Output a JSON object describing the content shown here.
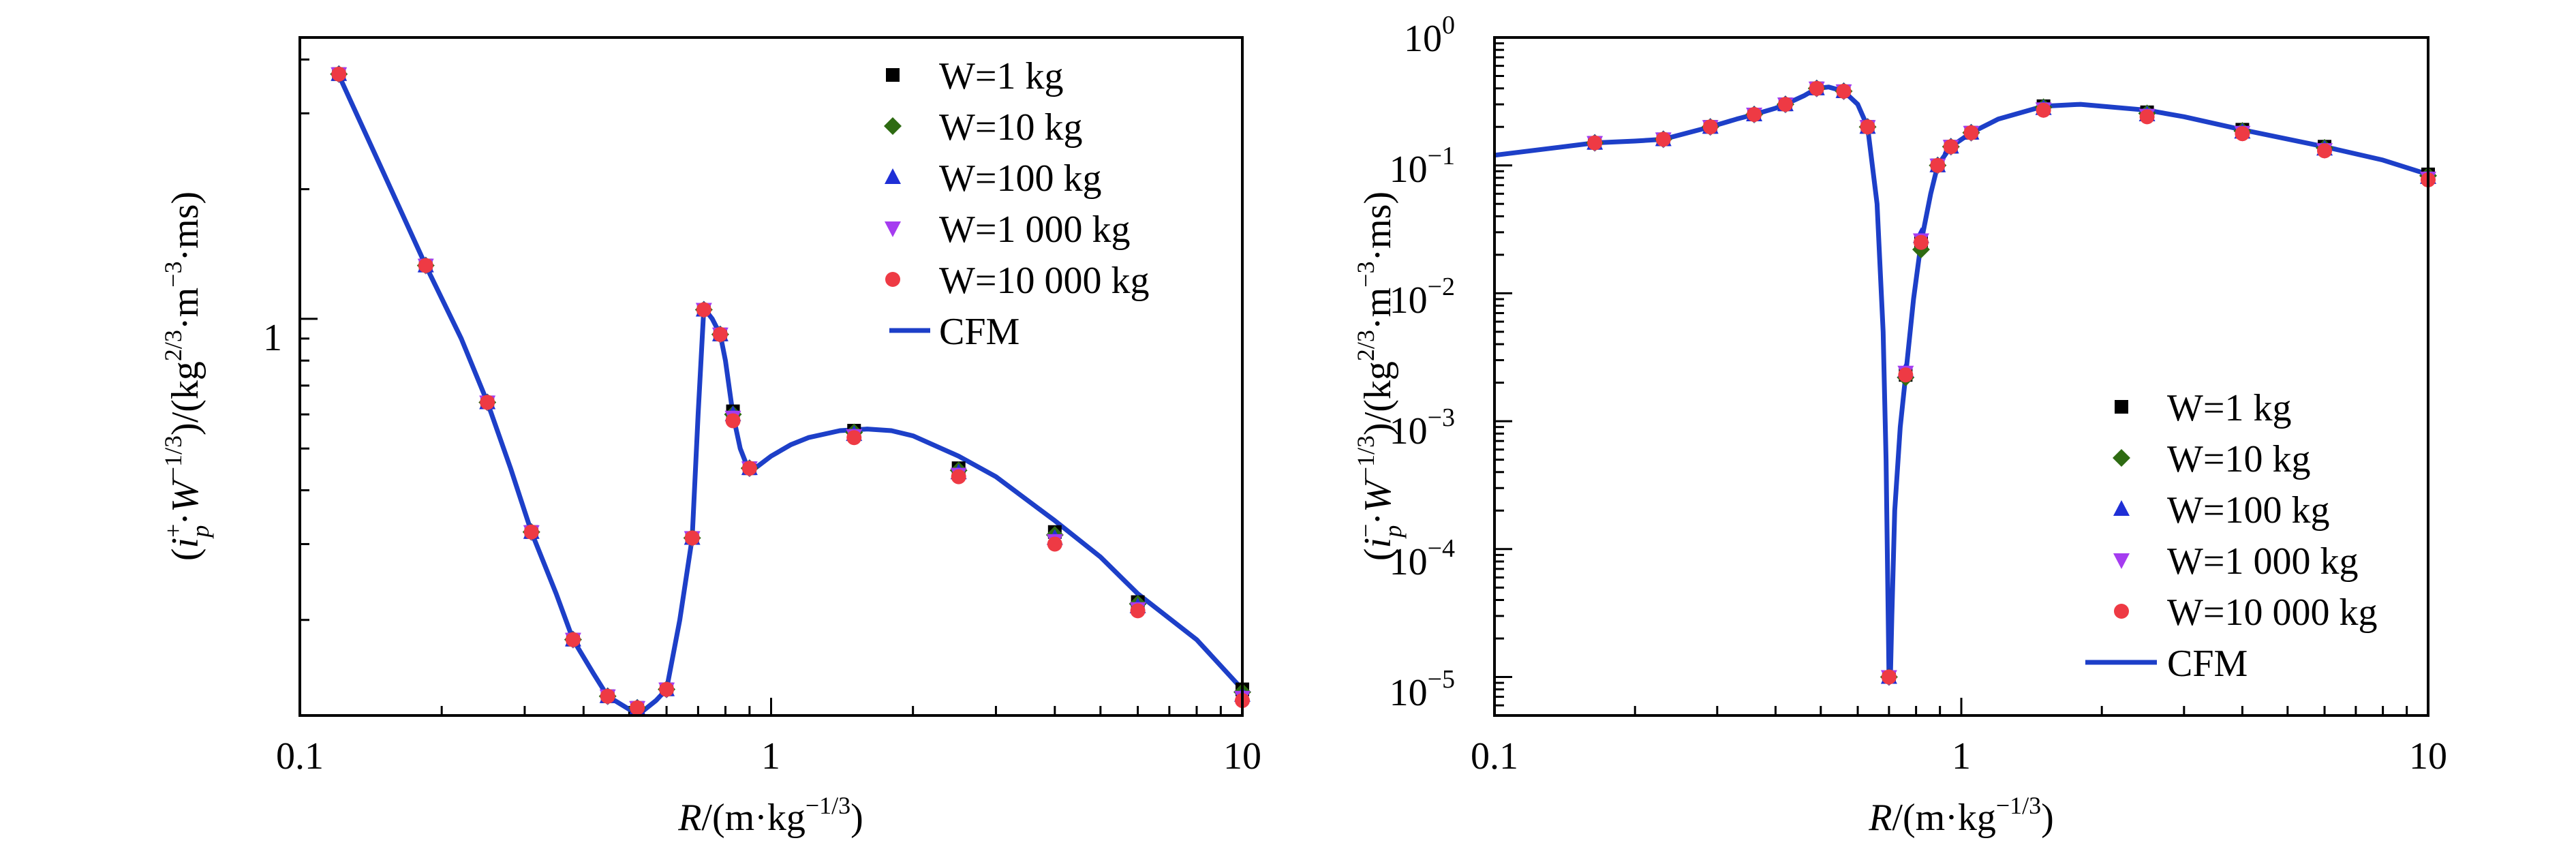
{
  "colors": {
    "w1": "#000000",
    "w10": "#2e6b12",
    "w100": "#1f2fd6",
    "w1000": "#a53cf0",
    "w10000": "#ee3a44",
    "cfm": "#1d3fc8"
  },
  "chart_data": [
    {
      "type": "scatter",
      "xscale": "log",
      "yscale": "log",
      "xlim": [
        0.1,
        10
      ],
      "ylim": [
        0.12,
        4.5
      ],
      "xticks": [
        "0.1",
        "1",
        "10"
      ],
      "yticks": [
        "1"
      ],
      "xlabel_main": "R",
      "xlabel_rest": "/(m·kg",
      "xlabel_exp": "−1/3",
      "xlabel_close": ")",
      "ylabel_parts": {
        "open": "(",
        "i": "i",
        "sup": "+",
        "sub": "p",
        "dot": "·",
        "w": "W",
        "wexp": "−1/3",
        "mid": ")/(kg",
        "kgexp": "2/3",
        "mid2": "·m",
        "mexp": "−3",
        "end": "·ms)"
      },
      "legend_position": "top-right",
      "series": [
        {
          "name": "W=1  kg",
          "marker": "square",
          "x": [
            0.121,
            0.185,
            0.25,
            0.31,
            0.38,
            0.45,
            0.52,
            0.6,
            0.68,
            0.72,
            0.78,
            0.83,
            0.9,
            1.5,
            2.5,
            4,
            6,
            10
          ],
          "y": [
            3.7,
            1.33,
            0.64,
            0.32,
            0.18,
            0.133,
            0.125,
            0.138,
            0.31,
            1.05,
            0.92,
            0.61,
            0.45,
            0.55,
            0.45,
            0.32,
            0.22,
            0.138
          ]
        },
        {
          "name": "W=10 kg",
          "marker": "diamond",
          "x": [
            0.121,
            0.185,
            0.25,
            0.31,
            0.38,
            0.45,
            0.52,
            0.6,
            0.68,
            0.72,
            0.78,
            0.83,
            0.9,
            1.5,
            2.5,
            4,
            6,
            10
          ],
          "y": [
            3.7,
            1.33,
            0.64,
            0.32,
            0.18,
            0.133,
            0.125,
            0.138,
            0.31,
            1.05,
            0.92,
            0.6,
            0.45,
            0.545,
            0.445,
            0.315,
            0.218,
            0.136
          ]
        },
        {
          "name": "W=100 kg",
          "marker": "triangle-up",
          "x": [
            0.121,
            0.185,
            0.25,
            0.31,
            0.38,
            0.45,
            0.52,
            0.6,
            0.68,
            0.72,
            0.78,
            0.83,
            0.9,
            1.5,
            2.5,
            4,
            6,
            10
          ],
          "y": [
            3.7,
            1.33,
            0.64,
            0.32,
            0.18,
            0.133,
            0.125,
            0.138,
            0.31,
            1.05,
            0.92,
            0.6,
            0.45,
            0.54,
            0.44,
            0.31,
            0.215,
            0.134
          ]
        },
        {
          "name": "W=1 000 kg",
          "marker": "triangle-down",
          "x": [
            0.121,
            0.185,
            0.25,
            0.31,
            0.38,
            0.45,
            0.52,
            0.6,
            0.68,
            0.72,
            0.78,
            0.83,
            0.9,
            1.5,
            2.5,
            4,
            6,
            10
          ],
          "y": [
            3.7,
            1.33,
            0.64,
            0.32,
            0.18,
            0.133,
            0.125,
            0.138,
            0.31,
            1.05,
            0.92,
            0.59,
            0.45,
            0.535,
            0.435,
            0.305,
            0.212,
            0.132
          ]
        },
        {
          "name": "W=10 000 kg",
          "marker": "circle",
          "x": [
            0.121,
            0.185,
            0.25,
            0.31,
            0.38,
            0.45,
            0.52,
            0.6,
            0.68,
            0.72,
            0.78,
            0.83,
            0.9,
            1.5,
            2.5,
            4,
            6,
            10
          ],
          "y": [
            3.7,
            1.33,
            0.64,
            0.32,
            0.18,
            0.133,
            0.125,
            0.138,
            0.31,
            1.05,
            0.92,
            0.58,
            0.45,
            0.53,
            0.43,
            0.3,
            0.21,
            0.13
          ]
        },
        {
          "name": "CFM",
          "line": true,
          "x": [
            0.12,
            0.15,
            0.185,
            0.22,
            0.25,
            0.28,
            0.31,
            0.35,
            0.38,
            0.42,
            0.45,
            0.5,
            0.53,
            0.57,
            0.6,
            0.64,
            0.68,
            0.7,
            0.72,
            0.75,
            0.78,
            0.8,
            0.83,
            0.86,
            0.9,
            0.95,
            1.0,
            1.1,
            1.2,
            1.4,
            1.6,
            1.8,
            2.0,
            2.5,
            3.0,
            4.0,
            5.0,
            6.0,
            8.0,
            10.0
          ],
          "y": [
            3.75,
            2.2,
            1.33,
            0.9,
            0.64,
            0.45,
            0.32,
            0.23,
            0.18,
            0.15,
            0.133,
            0.124,
            0.122,
            0.13,
            0.138,
            0.2,
            0.31,
            0.6,
            1.06,
            1.0,
            0.92,
            0.8,
            0.6,
            0.5,
            0.44,
            0.46,
            0.48,
            0.51,
            0.53,
            0.55,
            0.555,
            0.55,
            0.535,
            0.48,
            0.43,
            0.34,
            0.28,
            0.23,
            0.18,
            0.138
          ]
        }
      ]
    },
    {
      "type": "scatter",
      "xscale": "log",
      "yscale": "log",
      "xlim": [
        0.1,
        10
      ],
      "ylim": [
        5e-06,
        1
      ],
      "xticks": [
        "0.1",
        "1",
        "10"
      ],
      "yticks": [
        {
          "base": "10",
          "exp": "0"
        },
        {
          "base": "10",
          "exp": "−1"
        },
        {
          "base": "10",
          "exp": "−2"
        },
        {
          "base": "10",
          "exp": "−3"
        },
        {
          "base": "10",
          "exp": "−4"
        },
        {
          "base": "10",
          "exp": "−5"
        }
      ],
      "xlabel_main": "R",
      "xlabel_rest": "/(m·kg",
      "xlabel_exp": "−1/3",
      "xlabel_close": ")",
      "ylabel_parts": {
        "open": "(",
        "i": "i",
        "sup": "−",
        "sub": "p",
        "dot": "·",
        "w": "W",
        "wexp": "−1/3",
        "mid": ")/(kg",
        "kgexp": "2/3",
        "mid2": "·m",
        "mexp": "−3",
        "end": "·ms)"
      },
      "legend_position": "bottom-right",
      "series": [
        {
          "name": "W=1  kg",
          "marker": "square",
          "x": [
            0.164,
            0.23,
            0.29,
            0.36,
            0.42,
            0.49,
            0.56,
            0.63,
            0.7,
            0.76,
            0.82,
            0.89,
            0.95,
            1.05,
            1.5,
            2.5,
            4,
            6,
            10
          ],
          "y": [
            0.15,
            0.16,
            0.2,
            0.25,
            0.3,
            0.4,
            0.38,
            0.2,
            1e-05,
            0.0023,
            0.025,
            0.1,
            0.14,
            0.18,
            0.29,
            0.26,
            0.19,
            0.14,
            0.085
          ]
        },
        {
          "name": "W=10 kg",
          "marker": "diamond",
          "x": [
            0.164,
            0.23,
            0.29,
            0.36,
            0.42,
            0.49,
            0.56,
            0.63,
            0.7,
            0.76,
            0.82,
            0.89,
            0.95,
            1.05,
            1.5,
            2.5,
            4,
            6,
            10
          ],
          "y": [
            0.15,
            0.16,
            0.2,
            0.25,
            0.3,
            0.4,
            0.38,
            0.2,
            1e-05,
            0.0022,
            0.022,
            0.1,
            0.14,
            0.18,
            0.285,
            0.255,
            0.186,
            0.137,
            0.083
          ]
        },
        {
          "name": "W=100 kg",
          "marker": "triangle-up",
          "x": [
            0.164,
            0.23,
            0.29,
            0.36,
            0.42,
            0.49,
            0.56,
            0.63,
            0.7,
            0.76,
            0.82,
            0.89,
            0.95,
            1.05,
            1.5,
            2.5,
            4,
            6,
            10
          ],
          "y": [
            0.15,
            0.16,
            0.2,
            0.25,
            0.3,
            0.4,
            0.38,
            0.2,
            1e-05,
            0.0025,
            0.028,
            0.1,
            0.14,
            0.18,
            0.28,
            0.25,
            0.183,
            0.135,
            0.081
          ]
        },
        {
          "name": "W=1 000 kg",
          "marker": "triangle-down",
          "x": [
            0.164,
            0.23,
            0.29,
            0.36,
            0.42,
            0.49,
            0.56,
            0.63,
            0.7,
            0.76,
            0.82,
            0.89,
            0.95,
            1.05,
            1.5,
            2.5,
            4,
            6,
            10
          ],
          "y": [
            0.15,
            0.16,
            0.2,
            0.25,
            0.3,
            0.4,
            0.38,
            0.2,
            1e-05,
            0.0024,
            0.026,
            0.1,
            0.14,
            0.18,
            0.275,
            0.245,
            0.18,
            0.132,
            0.079
          ]
        },
        {
          "name": "W=10 000 kg",
          "marker": "circle",
          "x": [
            0.164,
            0.23,
            0.29,
            0.36,
            0.42,
            0.49,
            0.56,
            0.63,
            0.7,
            0.76,
            0.82,
            0.89,
            0.95,
            1.05,
            1.5,
            2.5,
            4,
            6,
            10
          ],
          "y": [
            0.15,
            0.16,
            0.2,
            0.25,
            0.3,
            0.4,
            0.38,
            0.2,
            1e-05,
            0.0023,
            0.025,
            0.1,
            0.14,
            0.18,
            0.27,
            0.24,
            0.177,
            0.13,
            0.077
          ]
        },
        {
          "name": "CFM",
          "line": true,
          "x": [
            0.1,
            0.13,
            0.164,
            0.2,
            0.23,
            0.26,
            0.29,
            0.33,
            0.36,
            0.4,
            0.42,
            0.46,
            0.49,
            0.52,
            0.56,
            0.6,
            0.63,
            0.66,
            0.68,
            0.69,
            0.7,
            0.705,
            0.71,
            0.72,
            0.74,
            0.76,
            0.79,
            0.82,
            0.86,
            0.89,
            0.95,
            1.05,
            1.2,
            1.5,
            1.8,
            2.5,
            3.0,
            4.0,
            6.0,
            8.0,
            10.0
          ],
          "y": [
            0.12,
            0.135,
            0.15,
            0.155,
            0.16,
            0.18,
            0.2,
            0.23,
            0.25,
            0.28,
            0.3,
            0.35,
            0.4,
            0.41,
            0.38,
            0.3,
            0.2,
            0.05,
            0.005,
            0.0005,
            1e-05,
            1e-05,
            3e-05,
            0.0002,
            0.0009,
            0.0023,
            0.009,
            0.025,
            0.06,
            0.1,
            0.14,
            0.18,
            0.23,
            0.29,
            0.3,
            0.27,
            0.24,
            0.19,
            0.14,
            0.11,
            0.085
          ]
        }
      ]
    }
  ]
}
